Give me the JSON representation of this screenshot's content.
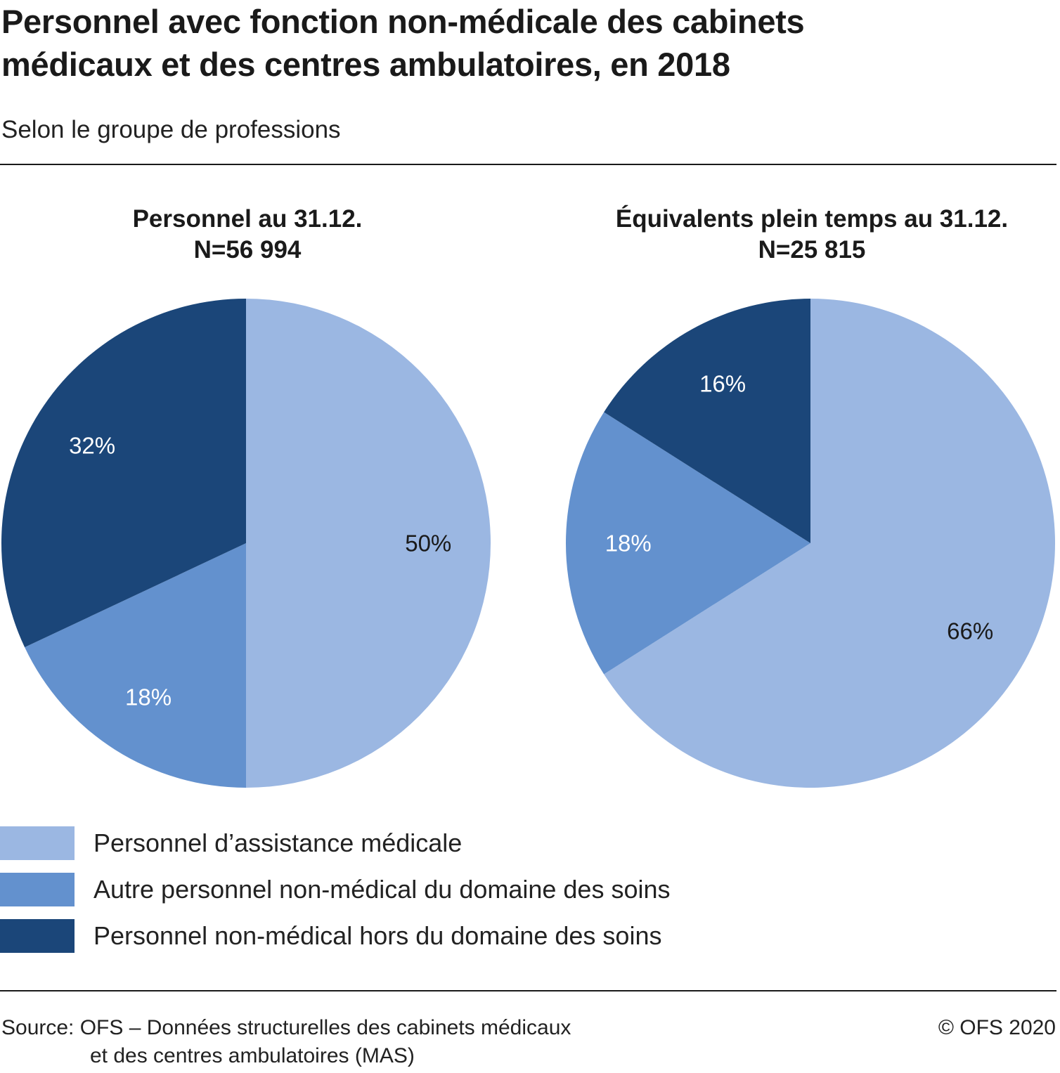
{
  "title_lines": [
    "Personnel avec fonction non-médicale des cabinets",
    "médicaux et des centres ambulatoires, en 2018"
  ],
  "subtitle": "Selon le groupe de professions",
  "chart_data": [
    {
      "type": "pie",
      "title_lines": [
        "Personnel au 31.12.",
        "N=56 994"
      ],
      "categories": [
        "Personnel d’assistance médicale",
        "Autre personnel non-médical du domaine des soins",
        "Personnel non-médical hors du domaine des soins"
      ],
      "values": [
        50,
        18,
        32
      ],
      "labels": [
        "50%",
        "18%",
        "32%"
      ],
      "unit": "%"
    },
    {
      "type": "pie",
      "title_lines": [
        "Équivalents plein temps au 31.12.",
        "N=25 815"
      ],
      "categories": [
        "Personnel d’assistance médicale",
        "Autre personnel non-médical du domaine des soins",
        "Personnel non-médical hors du domaine des soins"
      ],
      "values": [
        66,
        18,
        16
      ],
      "labels": [
        "66%",
        "18%",
        "16%"
      ],
      "unit": "%"
    }
  ],
  "legend": [
    {
      "label": "Personnel d’assistance médicale",
      "color": "#9bb7e2"
    },
    {
      "label": "Autre personnel non-médical du domaine des soins",
      "color": "#6391ce"
    },
    {
      "label": "Personnel non-médical hors du domaine des soins",
      "color": "#1b4679"
    }
  ],
  "label_colors": [
    "#1a1a1a",
    "#ffffff",
    "#ffffff"
  ],
  "source_lines": [
    "Source: OFS – Données structurelles des cabinets médicaux",
    "et des centres ambulatoires (MAS)"
  ],
  "copyright": "© OFS 2020"
}
